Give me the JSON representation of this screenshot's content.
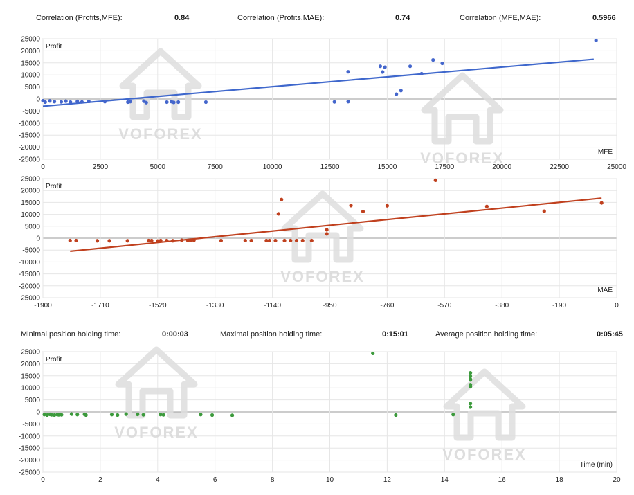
{
  "stats_top": [
    {
      "label": "Correlation (Profits,MFE):",
      "value": "0.84"
    },
    {
      "label": "Correlation (Profits,MAE):",
      "value": "0.74"
    },
    {
      "label": "Correlation (MFE,MAE):",
      "value": "0.5966"
    }
  ],
  "stats_mid": [
    {
      "label": "Minimal position holding time:",
      "value": "0:00:03"
    },
    {
      "label": "Maximal position holding time:",
      "value": "0:15:01"
    },
    {
      "label": "Average position holding time:",
      "value": "0:05:45"
    }
  ],
  "watermark": "VOFOREX",
  "chart_data": [
    {
      "type": "scatter",
      "ylabel": "Profit",
      "xlabel": "MFE",
      "xlim": [
        0,
        25000
      ],
      "ylim": [
        -25000,
        25000
      ],
      "xticks": [
        0,
        2500,
        5000,
        7500,
        10000,
        12500,
        15000,
        17500,
        20000,
        22500,
        25000
      ],
      "yticks": [
        25000,
        20000,
        15000,
        10000,
        5000,
        0,
        -5000,
        -10000,
        -15000,
        -20000,
        -25000
      ],
      "grid": true,
      "point_color": "#4466cc",
      "line_color": "#3e67cc",
      "trendline": {
        "x": [
          0,
          24000
        ],
        "y": [
          -3000,
          16500
        ]
      },
      "points": [
        [
          0,
          -700
        ],
        [
          100,
          -1300
        ],
        [
          300,
          -800
        ],
        [
          500,
          -1100
        ],
        [
          800,
          -1200
        ],
        [
          1000,
          -900
        ],
        [
          1200,
          -1300
        ],
        [
          1500,
          -1000
        ],
        [
          1700,
          -1200
        ],
        [
          2000,
          -1000
        ],
        [
          2700,
          -1100
        ],
        [
          3700,
          -1300
        ],
        [
          3800,
          -1100
        ],
        [
          4400,
          -900
        ],
        [
          4500,
          -1500
        ],
        [
          5400,
          -1300
        ],
        [
          5600,
          -1100
        ],
        [
          5700,
          -1400
        ],
        [
          5900,
          -1300
        ],
        [
          7100,
          -1300
        ],
        [
          12700,
          -1200
        ],
        [
          13300,
          -1100
        ],
        [
          13300,
          11300
        ],
        [
          14700,
          13600
        ],
        [
          14800,
          11200
        ],
        [
          14900,
          13200
        ],
        [
          15400,
          2000
        ],
        [
          15600,
          3500
        ],
        [
          16000,
          13600
        ],
        [
          16500,
          10500
        ],
        [
          17000,
          16200
        ],
        [
          17400,
          14800
        ],
        [
          24100,
          24300
        ]
      ]
    },
    {
      "type": "scatter",
      "ylabel": "Profit",
      "xlabel": "MAE",
      "xlim": [
        -1900,
        0
      ],
      "ylim": [
        -25000,
        25000
      ],
      "xticks": [
        -1900,
        -1710,
        -1520,
        -1330,
        -1140,
        -950,
        -760,
        -570,
        -380,
        -190,
        0
      ],
      "yticks": [
        25000,
        20000,
        15000,
        10000,
        5000,
        0,
        -5000,
        -10000,
        -15000,
        -20000,
        -25000
      ],
      "grid": true,
      "point_color": "#c0401e",
      "line_color": "#c0401e",
      "trendline": {
        "x": [
          -1810,
          -50
        ],
        "y": [
          -5500,
          16800
        ]
      },
      "points": [
        [
          -1810,
          -1000
        ],
        [
          -1790,
          -1000
        ],
        [
          -1720,
          -1100
        ],
        [
          -1680,
          -1100
        ],
        [
          -1620,
          -1100
        ],
        [
          -1550,
          -1000
        ],
        [
          -1540,
          -1000
        ],
        [
          -1520,
          -1200
        ],
        [
          -1510,
          -1000
        ],
        [
          -1490,
          -1000
        ],
        [
          -1470,
          -1100
        ],
        [
          -1440,
          -900
        ],
        [
          -1420,
          -1000
        ],
        [
          -1410,
          -1000
        ],
        [
          -1400,
          -900
        ],
        [
          -1310,
          -1000
        ],
        [
          -1230,
          -1000
        ],
        [
          -1210,
          -1000
        ],
        [
          -1160,
          -1000
        ],
        [
          -1150,
          -1000
        ],
        [
          -1130,
          -1000
        ],
        [
          -1120,
          10200
        ],
        [
          -1110,
          16200
        ],
        [
          -1100,
          -1000
        ],
        [
          -1080,
          -1000
        ],
        [
          -1060,
          -1000
        ],
        [
          -1040,
          -1000
        ],
        [
          -1010,
          -1000
        ],
        [
          -960,
          1800
        ],
        [
          -960,
          3500
        ],
        [
          -880,
          13700
        ],
        [
          -840,
          11200
        ],
        [
          -760,
          13600
        ],
        [
          -600,
          24300
        ],
        [
          -430,
          13300
        ],
        [
          -240,
          11300
        ],
        [
          -50,
          14800
        ]
      ]
    },
    {
      "type": "scatter",
      "ylabel": "Profit",
      "xlabel": "Time (min)",
      "xlim": [
        0,
        20
      ],
      "ylim": [
        -25000,
        25000
      ],
      "xticks": [
        0,
        2,
        4,
        6,
        8,
        10,
        12,
        14,
        16,
        18,
        20
      ],
      "yticks": [
        25000,
        20000,
        15000,
        10000,
        5000,
        0,
        -5000,
        -10000,
        -15000,
        -20000,
        -25000
      ],
      "grid": true,
      "point_color": "#3c9a3c",
      "points": [
        [
          0.05,
          -1100
        ],
        [
          0.15,
          -1300
        ],
        [
          0.25,
          -1000
        ],
        [
          0.3,
          -1200
        ],
        [
          0.4,
          -1300
        ],
        [
          0.5,
          -1100
        ],
        [
          0.55,
          -1200
        ],
        [
          0.6,
          -1000
        ],
        [
          0.65,
          -1200
        ],
        [
          1.0,
          -900
        ],
        [
          1.2,
          -1100
        ],
        [
          1.45,
          -1000
        ],
        [
          1.5,
          -1300
        ],
        [
          2.4,
          -1100
        ],
        [
          2.6,
          -1300
        ],
        [
          2.9,
          -900
        ],
        [
          3.3,
          -1000
        ],
        [
          3.5,
          -1200
        ],
        [
          4.1,
          -1100
        ],
        [
          4.2,
          -1200
        ],
        [
          5.5,
          -1100
        ],
        [
          5.9,
          -1300
        ],
        [
          6.6,
          -1400
        ],
        [
          11.5,
          24300
        ],
        [
          12.3,
          -1300
        ],
        [
          14.3,
          -1100
        ],
        [
          14.9,
          2000
        ],
        [
          14.9,
          3500
        ],
        [
          14.9,
          10500
        ],
        [
          14.9,
          11300
        ],
        [
          14.9,
          13300
        ],
        [
          14.9,
          13600
        ],
        [
          14.9,
          14800
        ],
        [
          14.9,
          16200
        ]
      ]
    }
  ]
}
